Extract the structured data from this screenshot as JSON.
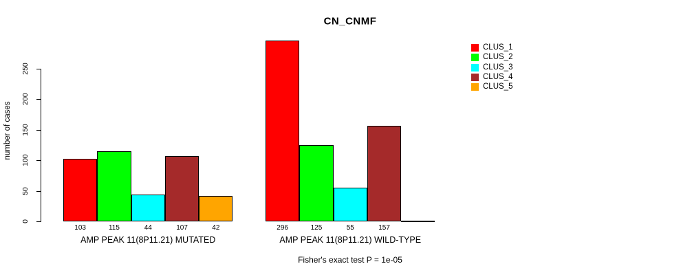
{
  "title": "CN_CNMF",
  "ylabel": "number of cases",
  "footer": "Fisher's exact test P = 1e-05",
  "legend": {
    "position": "right",
    "items": [
      {
        "label": "CLUS_1",
        "color": "#FF0000"
      },
      {
        "label": "CLUS_2",
        "color": "#00FF00"
      },
      {
        "label": "CLUS_3",
        "color": "#00FFFF"
      },
      {
        "label": "CLUS_4",
        "color": "#A52A2A"
      },
      {
        "label": "CLUS_5",
        "color": "#FFA500"
      }
    ]
  },
  "chart_data": {
    "type": "bar",
    "title": "CN_CNMF",
    "xlabel": "",
    "ylabel": "number of cases",
    "ylim": [
      0,
      296
    ],
    "yticks": [
      0,
      50,
      100,
      150,
      200,
      250
    ],
    "grid": false,
    "legend_position": "right",
    "categories": [
      "AMP PEAK 11(8P11.21) MUTATED",
      "AMP PEAK 11(8P11.21) WILD-TYPE"
    ],
    "series": [
      {
        "name": "CLUS_1",
        "color": "#FF0000",
        "values": [
          103,
          296
        ]
      },
      {
        "name": "CLUS_2",
        "color": "#00FF00",
        "values": [
          115,
          125
        ]
      },
      {
        "name": "CLUS_3",
        "color": "#00FFFF",
        "values": [
          44,
          55
        ]
      },
      {
        "name": "CLUS_4",
        "color": "#A52A2A",
        "values": [
          107,
          157
        ]
      },
      {
        "name": "CLUS_5",
        "color": "#FFA500",
        "values": [
          42,
          0
        ]
      }
    ],
    "bar_value_labels_shown": true,
    "annotation": "Fisher's exact test P = 1e-05"
  }
}
